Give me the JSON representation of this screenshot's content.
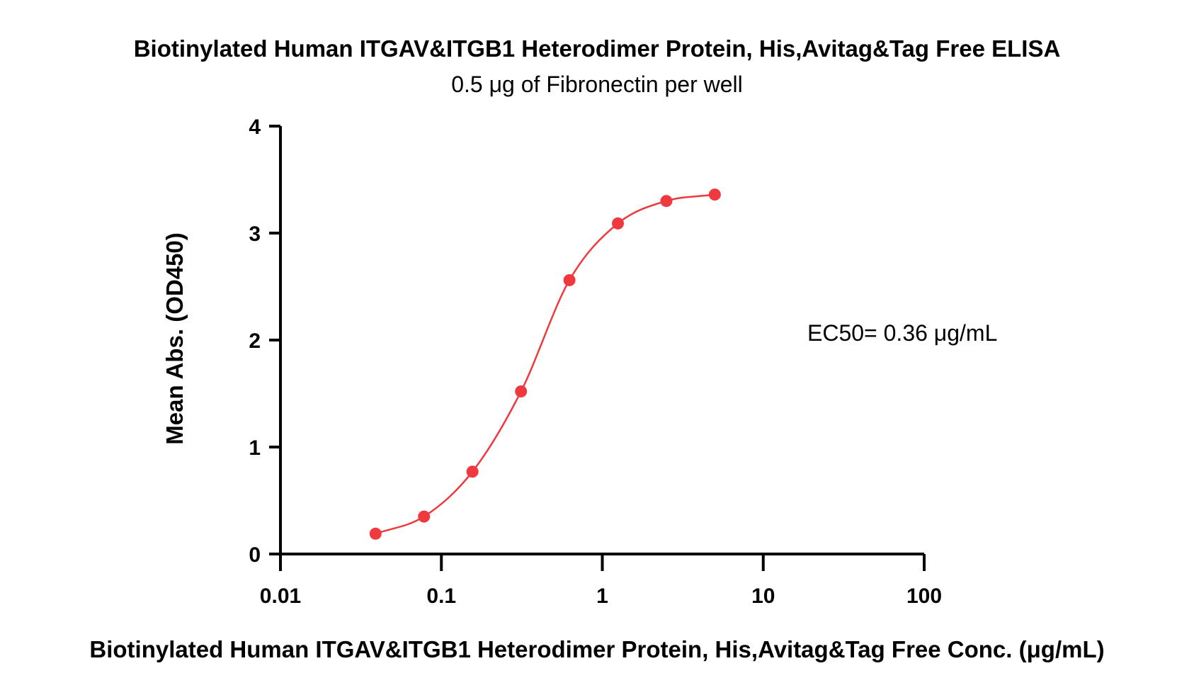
{
  "chart_data": {
    "type": "scatter",
    "title": "Biotinylated Human ITGAV&ITGB1 Heterodimer Protein, His,Avitag&Tag Free ELISA",
    "subtitle": "0.5 μg of Fibronectin per well",
    "xlabel": "Biotinylated Human ITGAV&ITGB1 Heterodimer Protein, His,Avitag&Tag Free Conc. (μg/mL)",
    "ylabel": "Mean Abs. (OD450)",
    "x_scale": "log",
    "xlim": [
      0.01,
      100
    ],
    "ylim": [
      0,
      4
    ],
    "x_ticks": [
      0.01,
      0.1,
      1,
      10,
      100
    ],
    "x_tick_labels": [
      "0.01",
      "0.1",
      "1",
      "10",
      "100"
    ],
    "y_ticks": [
      0,
      1,
      2,
      3,
      4
    ],
    "y_tick_labels": [
      "0",
      "1",
      "2",
      "3",
      "4"
    ],
    "grid": false,
    "annotation": "EC50= 0.36 μg/mL",
    "series": [
      {
        "color": "#f0393f",
        "fit": "four-parameter logistic",
        "x": [
          0.039,
          0.078,
          0.156,
          0.3125,
          0.625,
          1.25,
          2.5,
          5
        ],
        "y": [
          0.19,
          0.35,
          0.77,
          1.52,
          2.56,
          3.09,
          3.3,
          3.36
        ]
      }
    ]
  }
}
